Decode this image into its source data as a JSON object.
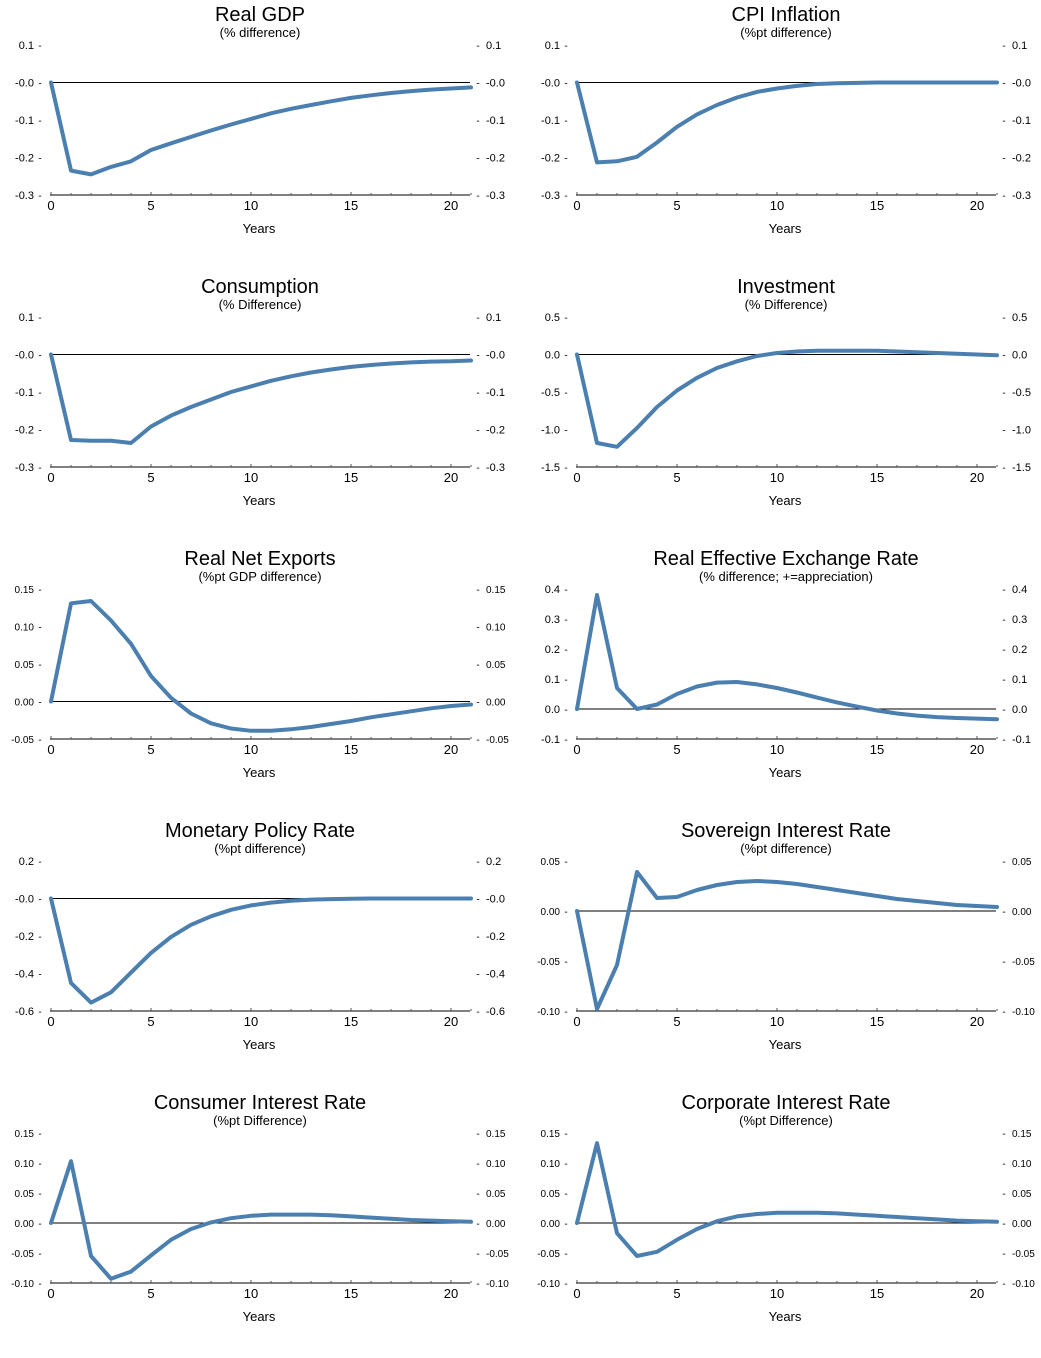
{
  "chart_data": [
    {
      "type": "line",
      "title": "Real GDP",
      "subtitle": "(% difference)",
      "xlabel": "Years",
      "xticks": [
        "0",
        "5",
        "10",
        "15",
        "20"
      ],
      "yticks": [
        "0.1",
        "-0.0",
        "-0.1",
        "-0.2",
        "-0.3"
      ],
      "ylim": [
        -0.3,
        0.1
      ],
      "xlim": [
        0,
        21
      ],
      "x": [
        0,
        1,
        2,
        3,
        4,
        5,
        6,
        7,
        8,
        9,
        10,
        11,
        12,
        13,
        14,
        15,
        16,
        17,
        18,
        19,
        20,
        21
      ],
      "values": [
        0,
        -0.235,
        -0.245,
        -0.225,
        -0.21,
        -0.18,
        -0.162,
        -0.145,
        -0.128,
        -0.112,
        -0.097,
        -0.082,
        -0.07,
        -0.06,
        -0.05,
        -0.041,
        -0.034,
        -0.028,
        -0.023,
        -0.019,
        -0.016,
        -0.013
      ],
      "color": "#4a7fb0"
    },
    {
      "type": "line",
      "title": "CPI Inflation",
      "subtitle": "(%pt difference)",
      "xlabel": "Years",
      "xticks": [
        "0",
        "5",
        "10",
        "15",
        "20"
      ],
      "yticks": [
        "0.1",
        "-0.0",
        "-0.1",
        "-0.2",
        "-0.3"
      ],
      "ylim": [
        -0.3,
        0.1
      ],
      "xlim": [
        0,
        21
      ],
      "x": [
        0,
        1,
        2,
        3,
        4,
        5,
        6,
        7,
        8,
        9,
        10,
        11,
        12,
        13,
        14,
        15,
        16,
        17,
        18,
        19,
        20,
        21
      ],
      "values": [
        0,
        -0.213,
        -0.21,
        -0.198,
        -0.16,
        -0.118,
        -0.085,
        -0.06,
        -0.04,
        -0.025,
        -0.016,
        -0.009,
        -0.004,
        -0.002,
        -0.001,
        0,
        0,
        0,
        0,
        0,
        0,
        0
      ],
      "color": "#4a7fb0"
    },
    {
      "type": "line",
      "title": "Consumption",
      "subtitle": "(% Difference)",
      "xlabel": "Years",
      "xticks": [
        "0",
        "5",
        "10",
        "15",
        "20"
      ],
      "yticks": [
        "0.1",
        "-0.0",
        "-0.1",
        "-0.2",
        "-0.3"
      ],
      "ylim": [
        -0.3,
        0.1
      ],
      "xlim": [
        0,
        21
      ],
      "x": [
        0,
        1,
        2,
        3,
        4,
        5,
        6,
        7,
        8,
        9,
        10,
        11,
        12,
        13,
        14,
        15,
        16,
        17,
        18,
        19,
        20,
        21
      ],
      "values": [
        0,
        -0.228,
        -0.23,
        -0.23,
        -0.236,
        -0.192,
        -0.163,
        -0.14,
        -0.12,
        -0.1,
        -0.085,
        -0.07,
        -0.058,
        -0.048,
        -0.04,
        -0.033,
        -0.028,
        -0.024,
        -0.021,
        -0.019,
        -0.018,
        -0.016
      ],
      "color": "#4a7fb0"
    },
    {
      "type": "line",
      "title": "Investment",
      "subtitle": "(% Difference)",
      "xlabel": "Years",
      "xticks": [
        "0",
        "5",
        "10",
        "15",
        "20"
      ],
      "yticks": [
        "0.5",
        "0.0",
        "-0.5",
        "-1.0",
        "-1.5"
      ],
      "ylim": [
        -1.5,
        0.5
      ],
      "xlim": [
        0,
        21
      ],
      "x": [
        0,
        1,
        2,
        3,
        4,
        5,
        6,
        7,
        8,
        9,
        10,
        11,
        12,
        13,
        14,
        15,
        16,
        17,
        18,
        19,
        20,
        21
      ],
      "values": [
        0,
        -1.18,
        -1.23,
        -0.98,
        -0.7,
        -0.48,
        -0.31,
        -0.18,
        -0.09,
        -0.02,
        0.02,
        0.04,
        0.05,
        0.05,
        0.05,
        0.05,
        0.04,
        0.03,
        0.02,
        0.01,
        0.0,
        -0.01
      ],
      "color": "#4a7fb0"
    },
    {
      "type": "line",
      "title": "Real Net Exports",
      "subtitle": "(%pt GDP difference)",
      "xlabel": "Years",
      "xticks": [
        "0",
        "5",
        "10",
        "15",
        "20"
      ],
      "yticks": [
        "0.15",
        "0.10",
        "0.05",
        "0.00",
        "-0.05"
      ],
      "ylim": [
        -0.05,
        0.15
      ],
      "xlim": [
        0,
        21
      ],
      "x": [
        0,
        1,
        2,
        3,
        4,
        5,
        6,
        7,
        8,
        9,
        10,
        11,
        12,
        13,
        14,
        15,
        16,
        17,
        18,
        19,
        20,
        21
      ],
      "values": [
        0,
        0.131,
        0.134,
        0.108,
        0.077,
        0.034,
        0.005,
        -0.016,
        -0.029,
        -0.036,
        -0.039,
        -0.039,
        -0.037,
        -0.034,
        -0.03,
        -0.026,
        -0.021,
        -0.017,
        -0.013,
        -0.009,
        -0.006,
        -0.004
      ],
      "color": "#4a7fb0"
    },
    {
      "type": "line",
      "title": "Real Effective Exchange Rate",
      "subtitle": "(% difference; +=appreciation)",
      "xlabel": "Years",
      "xticks": [
        "0",
        "5",
        "10",
        "15",
        "20"
      ],
      "yticks": [
        "0.4",
        "0.3",
        "0.2",
        "0.1",
        "0.0",
        "-0.1"
      ],
      "ylim": [
        -0.1,
        0.4
      ],
      "xlim": [
        0,
        21
      ],
      "x": [
        0,
        1,
        2,
        3,
        4,
        5,
        6,
        7,
        8,
        9,
        10,
        11,
        12,
        13,
        14,
        15,
        16,
        17,
        18,
        19,
        20,
        21
      ],
      "values": [
        0,
        0.38,
        0.07,
        0.0,
        0.015,
        0.05,
        0.075,
        0.088,
        0.09,
        0.082,
        0.07,
        0.055,
        0.038,
        0.022,
        0.008,
        -0.005,
        -0.015,
        -0.022,
        -0.027,
        -0.03,
        -0.032,
        -0.034
      ],
      "color": "#4a7fb0"
    },
    {
      "type": "line",
      "title": "Monetary Policy Rate",
      "subtitle": "(%pt difference)",
      "xlabel": "Years",
      "xticks": [
        "0",
        "5",
        "10",
        "15",
        "20"
      ],
      "yticks": [
        "0.2",
        "-0.0",
        "-0.2",
        "-0.4",
        "-0.6"
      ],
      "ylim": [
        -0.6,
        0.2
      ],
      "xlim": [
        0,
        21
      ],
      "x": [
        0,
        1,
        2,
        3,
        4,
        5,
        6,
        7,
        8,
        9,
        10,
        11,
        12,
        13,
        14,
        15,
        16,
        17,
        18,
        19,
        20,
        21
      ],
      "values": [
        0,
        -0.45,
        -0.555,
        -0.5,
        -0.395,
        -0.29,
        -0.205,
        -0.14,
        -0.095,
        -0.06,
        -0.037,
        -0.022,
        -0.012,
        -0.006,
        -0.003,
        -0.001,
        0,
        0,
        0,
        0,
        0,
        0
      ],
      "color": "#4a7fb0"
    },
    {
      "type": "line",
      "title": "Sovereign Interest Rate",
      "subtitle": "(%pt difference)",
      "xlabel": "Years",
      "xticks": [
        "0",
        "5",
        "10",
        "15",
        "20"
      ],
      "yticks": [
        "0.05",
        "0.00",
        "-0.05",
        "-0.10"
      ],
      "ylim": [
        -0.1,
        0.05
      ],
      "xlim": [
        0,
        21
      ],
      "x": [
        0,
        1,
        2,
        3,
        4,
        5,
        6,
        7,
        8,
        9,
        10,
        11,
        12,
        13,
        14,
        15,
        16,
        17,
        18,
        19,
        20,
        21
      ],
      "values": [
        0,
        -0.098,
        -0.054,
        0.039,
        0.013,
        0.014,
        0.021,
        0.026,
        0.029,
        0.03,
        0.029,
        0.027,
        0.024,
        0.021,
        0.018,
        0.015,
        0.012,
        0.01,
        0.008,
        0.006,
        0.005,
        0.004
      ],
      "color": "#4a7fb0"
    },
    {
      "type": "line",
      "title": "Consumer Interest Rate",
      "subtitle": "(%pt Difference)",
      "xlabel": "Years",
      "xticks": [
        "0",
        "5",
        "10",
        "15",
        "20"
      ],
      "yticks": [
        "0.15",
        "0.10",
        "0.05",
        "0.00",
        "-0.05",
        "-0.10"
      ],
      "ylim": [
        -0.1,
        0.15
      ],
      "xlim": [
        0,
        21
      ],
      "x": [
        0,
        1,
        2,
        3,
        4,
        5,
        6,
        7,
        8,
        9,
        10,
        11,
        12,
        13,
        14,
        15,
        16,
        17,
        18,
        19,
        20,
        21
      ],
      "values": [
        0,
        0.103,
        -0.055,
        -0.093,
        -0.081,
        -0.054,
        -0.028,
        -0.01,
        0.001,
        0.008,
        0.012,
        0.014,
        0.014,
        0.014,
        0.013,
        0.011,
        0.009,
        0.007,
        0.005,
        0.004,
        0.003,
        0.002
      ],
      "color": "#4a7fb0"
    },
    {
      "type": "line",
      "title": "Corporate Interest Rate",
      "subtitle": "(%pt Difference)",
      "xlabel": "Years",
      "xticks": [
        "0",
        "5",
        "10",
        "15",
        "20"
      ],
      "yticks": [
        "0.15",
        "0.10",
        "0.05",
        "0.00",
        "-0.05",
        "-0.10"
      ],
      "ylim": [
        -0.1,
        0.15
      ],
      "xlim": [
        0,
        21
      ],
      "x": [
        0,
        1,
        2,
        3,
        4,
        5,
        6,
        7,
        8,
        9,
        10,
        11,
        12,
        13,
        14,
        15,
        16,
        17,
        18,
        19,
        20,
        21
      ],
      "values": [
        0,
        0.133,
        -0.017,
        -0.055,
        -0.048,
        -0.028,
        -0.01,
        0.003,
        0.011,
        0.015,
        0.017,
        0.017,
        0.017,
        0.016,
        0.014,
        0.012,
        0.01,
        0.008,
        0.006,
        0.004,
        0.003,
        0.002
      ],
      "color": "#4a7fb0"
    }
  ]
}
